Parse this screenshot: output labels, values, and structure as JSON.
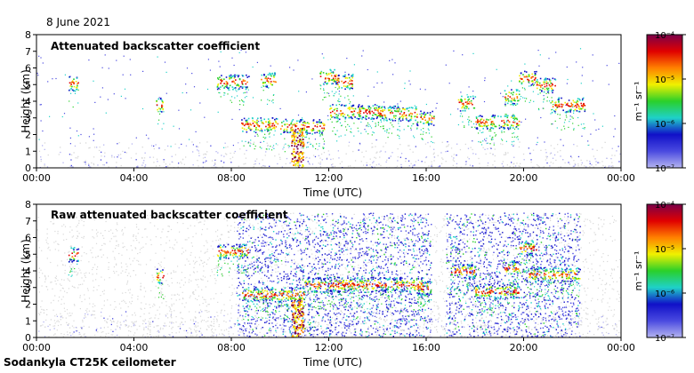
{
  "page": {
    "date": "8 June 2021",
    "footer": "Sodankyla CT25K ceilometer"
  },
  "colors": {
    "background": "#ffffff",
    "noise_gray": "#d8d8d8",
    "colormap": [
      "#b4b4f0",
      "#4a4ae0",
      "#1010c8",
      "#1fd1c8",
      "#2ad02a",
      "#f0f000",
      "#ff8000",
      "#e00000",
      "#7a004a"
    ]
  },
  "chart_data": [
    {
      "type": "heatmap",
      "title": "Attenuated backscatter coefficient",
      "xlabel": "Time (UTC)",
      "ylabel": "Height (km)",
      "xlim": [
        0,
        24
      ],
      "ylim": [
        0,
        8
      ],
      "x_ticks": [
        "00:00",
        "04:00",
        "08:00",
        "12:00",
        "16:00",
        "20:00",
        "00:00"
      ],
      "y_ticks": [
        "0",
        "1",
        "2",
        "3",
        "4",
        "5",
        "6",
        "7",
        "8"
      ],
      "colorbar": {
        "label": "m⁻¹ sr⁻¹",
        "scale": "log",
        "range": [
          1e-07,
          0.0001
        ],
        "ticks": [
          "10⁻⁴",
          "10⁻⁵",
          "10⁻⁶",
          "10⁻⁷"
        ]
      },
      "noise_filtered": true,
      "cloud_layers": [
        {
          "t_start": 1.3,
          "t_end": 1.7,
          "height_km": 5.1
        },
        {
          "t_start": 4.9,
          "t_end": 5.2,
          "height_km": 3.8
        },
        {
          "t_start": 7.4,
          "t_end": 8.7,
          "height_km": 5.2
        },
        {
          "t_start": 8.4,
          "t_end": 9.9,
          "height_km": 2.6
        },
        {
          "t_start": 9.2,
          "t_end": 9.8,
          "height_km": 5.3
        },
        {
          "t_start": 10.0,
          "t_end": 11.8,
          "height_km": 2.5
        },
        {
          "t_start": 11.6,
          "t_end": 12.4,
          "height_km": 5.5
        },
        {
          "t_start": 12.0,
          "t_end": 14.2,
          "height_km": 3.4
        },
        {
          "t_start": 12.3,
          "t_end": 13.0,
          "height_km": 5.2
        },
        {
          "t_start": 14.0,
          "t_end": 15.6,
          "height_km": 3.3
        },
        {
          "t_start": 15.6,
          "t_end": 16.3,
          "height_km": 3.0
        },
        {
          "t_start": 17.3,
          "t_end": 18.0,
          "height_km": 3.9
        },
        {
          "t_start": 18.0,
          "t_end": 19.8,
          "height_km": 2.8
        },
        {
          "t_start": 19.2,
          "t_end": 19.8,
          "height_km": 4.3
        },
        {
          "t_start": 19.8,
          "t_end": 20.5,
          "height_km": 5.4
        },
        {
          "t_start": 20.5,
          "t_end": 21.3,
          "height_km": 5.0
        },
        {
          "t_start": 21.1,
          "t_end": 22.5,
          "height_km": 3.8
        }
      ],
      "precipitation": [
        {
          "t": 10.7,
          "from_km": 0,
          "to_km": 2.4
        }
      ]
    },
    {
      "type": "heatmap",
      "title": "Raw attenuated backscatter coefficient",
      "xlabel": "Time (UTC)",
      "ylabel": "Height (km)",
      "xlim": [
        0,
        24
      ],
      "ylim": [
        0,
        8
      ],
      "x_ticks": [
        "00:00",
        "04:00",
        "08:00",
        "12:00",
        "16:00",
        "20:00",
        "00:00"
      ],
      "y_ticks": [
        "0",
        "1",
        "2",
        "3",
        "4",
        "5",
        "6",
        "7",
        "8"
      ],
      "colorbar": {
        "label": "m⁻¹ sr⁻¹",
        "scale": "log",
        "range": [
          1e-07,
          0.0001
        ],
        "ticks": [
          "10⁻⁴",
          "10⁻⁵",
          "10⁻⁶",
          "10⁻⁷"
        ]
      },
      "noise_filtered": false,
      "noisy_periods": [
        {
          "t_start": 8.2,
          "t_end": 16.2
        },
        {
          "t_start": 16.8,
          "t_end": 22.3
        }
      ],
      "cloud_layers": [
        {
          "t_start": 1.3,
          "t_end": 1.7,
          "height_km": 5.0
        },
        {
          "t_start": 4.9,
          "t_end": 5.2,
          "height_km": 3.7
        },
        {
          "t_start": 7.4,
          "t_end": 8.7,
          "height_km": 5.2
        },
        {
          "t_start": 8.4,
          "t_end": 11.0,
          "height_km": 2.6
        },
        {
          "t_start": 11.0,
          "t_end": 15.8,
          "height_km": 3.2
        },
        {
          "t_start": 15.6,
          "t_end": 16.2,
          "height_km": 3.0
        },
        {
          "t_start": 17.0,
          "t_end": 18.0,
          "height_km": 4.0
        },
        {
          "t_start": 18.0,
          "t_end": 19.8,
          "height_km": 2.8
        },
        {
          "t_start": 19.2,
          "t_end": 19.8,
          "height_km": 4.2
        },
        {
          "t_start": 19.8,
          "t_end": 20.5,
          "height_km": 5.4
        },
        {
          "t_start": 20.2,
          "t_end": 22.3,
          "height_km": 3.8
        }
      ],
      "precipitation": [
        {
          "t": 10.7,
          "from_km": 0,
          "to_km": 2.4
        }
      ]
    }
  ]
}
